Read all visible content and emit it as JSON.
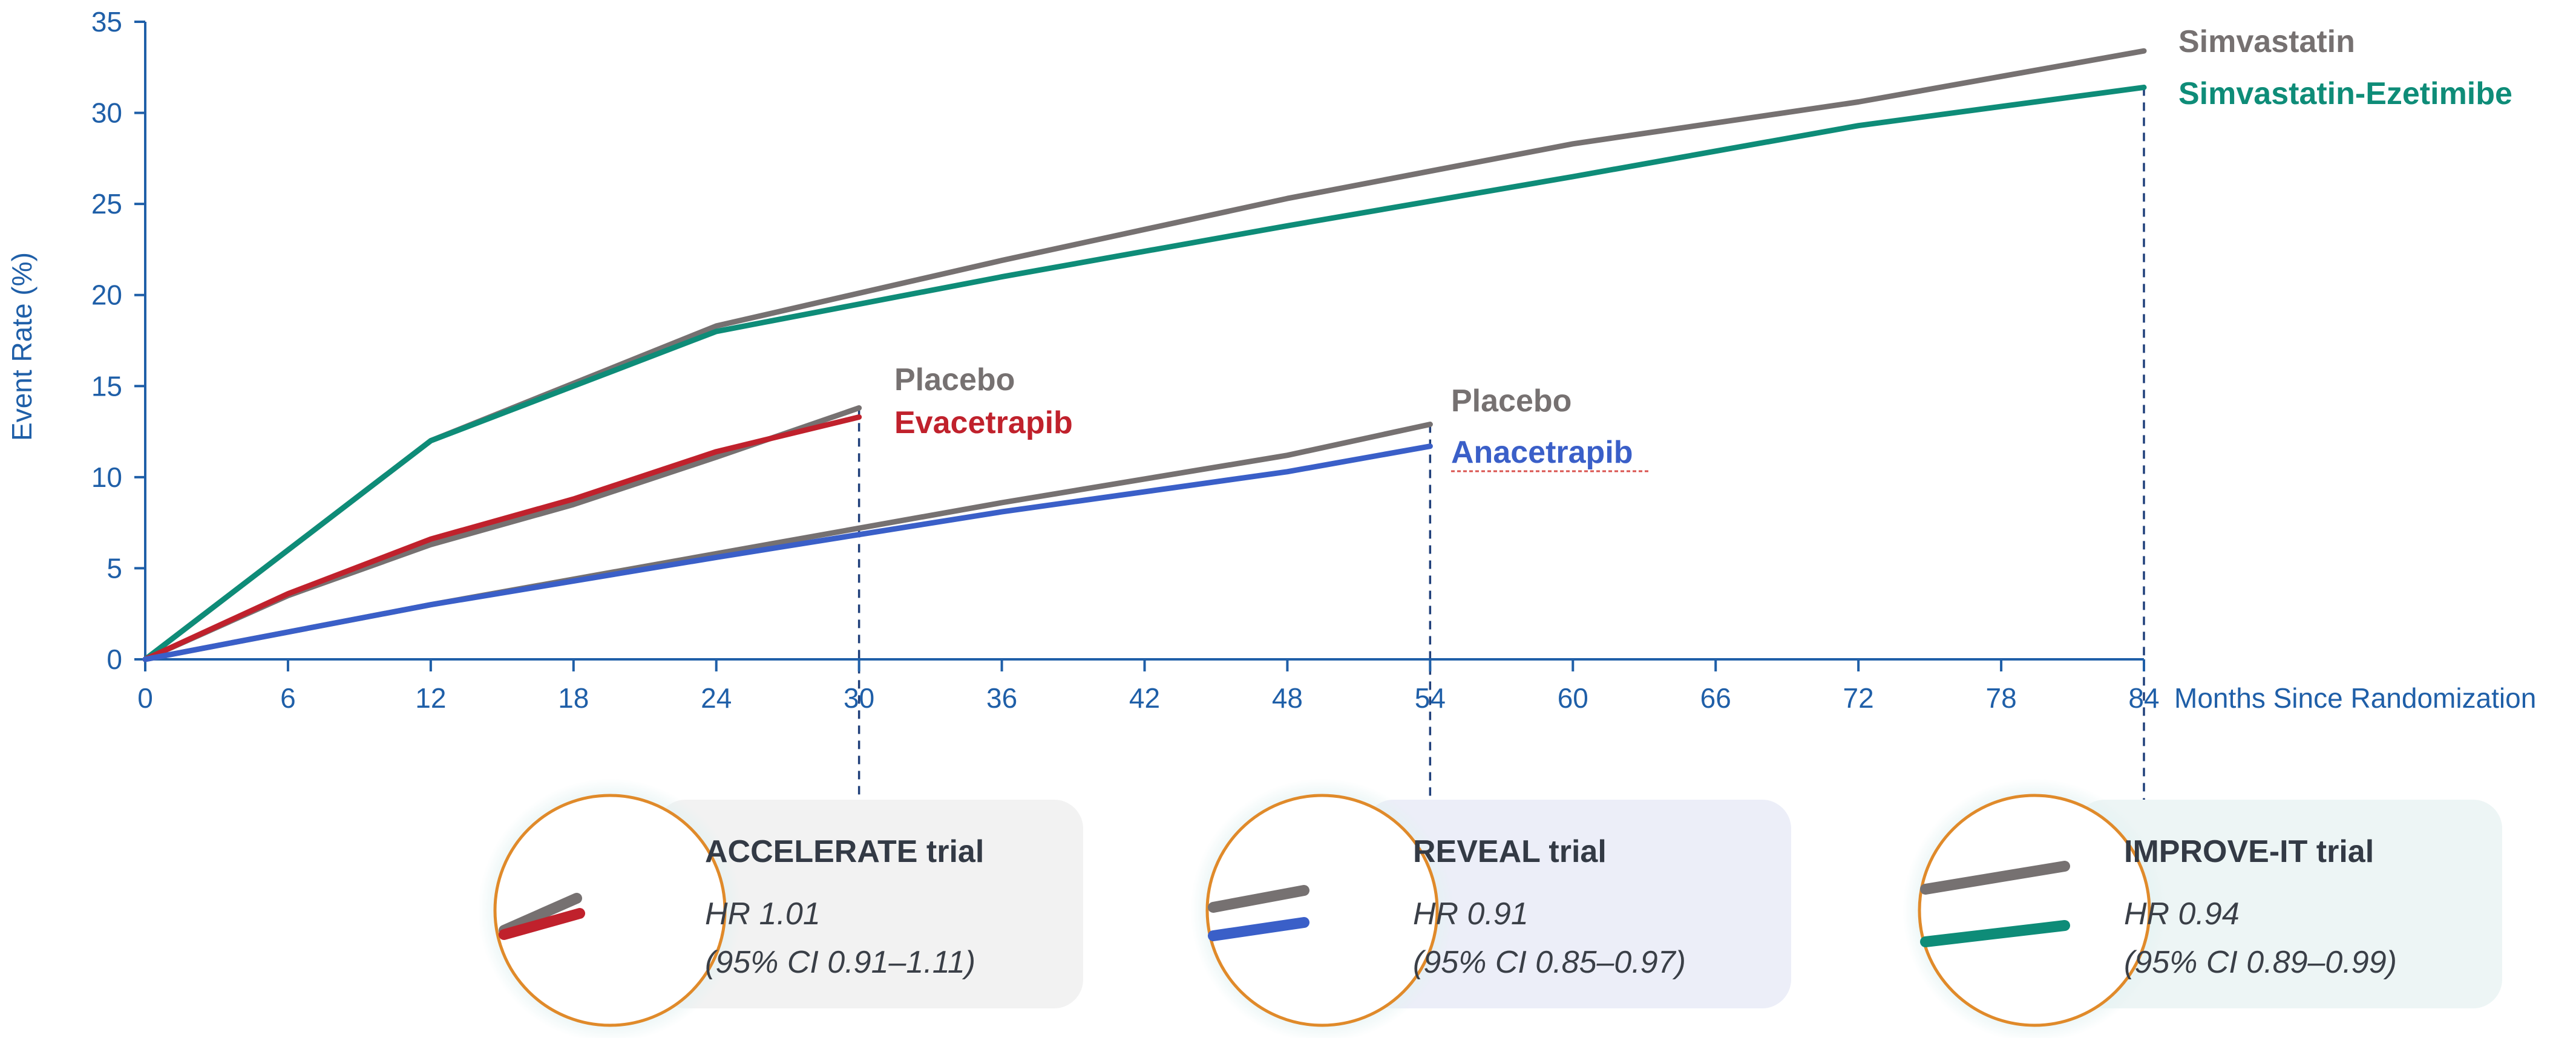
{
  "chart_data": {
    "type": "line",
    "xlabel": "Months Since Randomization",
    "ylabel": "Event Rate (%)",
    "xlim": [
      0,
      84
    ],
    "ylim": [
      0,
      35
    ],
    "xticks": [
      0,
      6,
      12,
      18,
      24,
      30,
      36,
      42,
      48,
      54,
      60,
      66,
      72,
      78,
      84
    ],
    "yticks": [
      0,
      5,
      10,
      15,
      20,
      25,
      30,
      35
    ],
    "grid": false,
    "series": [
      {
        "name": "Simvastatin",
        "color": "#767171",
        "x": [
          0,
          12,
          24,
          36,
          48,
          60,
          72,
          84
        ],
        "y": [
          0,
          12.0,
          18.3,
          21.9,
          25.3,
          28.3,
          30.6,
          33.4
        ]
      },
      {
        "name": "Simvastatin-Ezetimibe",
        "color": "#0e8c78",
        "x": [
          0,
          12,
          24,
          36,
          48,
          60,
          72,
          84
        ],
        "y": [
          0,
          12.0,
          18.0,
          21.0,
          23.8,
          26.5,
          29.3,
          31.4
        ]
      },
      {
        "name": "Placebo",
        "color": "#767171",
        "x": [
          0,
          6,
          12,
          18,
          24,
          30
        ],
        "y": [
          0,
          3.5,
          6.3,
          8.5,
          11.1,
          13.8
        ]
      },
      {
        "name": "Evacetrapib",
        "color": "#c0212c",
        "x": [
          0,
          6,
          12,
          18,
          24,
          30
        ],
        "y": [
          0,
          3.6,
          6.6,
          8.8,
          11.4,
          13.3
        ]
      },
      {
        "name": "Placebo",
        "color": "#767171",
        "x": [
          0,
          12,
          24,
          36,
          48,
          54
        ],
        "y": [
          0,
          3.0,
          5.8,
          8.6,
          11.2,
          12.9
        ]
      },
      {
        "name": "Anacetrapib",
        "color": "#3a5fc8",
        "x": [
          0,
          12,
          24,
          36,
          48,
          54
        ],
        "y": [
          0,
          3.0,
          5.6,
          8.1,
          10.3,
          11.7
        ]
      }
    ],
    "guide_lines_x": [
      30,
      54,
      84
    ],
    "trials": [
      {
        "title": "ACCELERATE trial",
        "hr": "HR 1.01",
        "ci": "(95% CI 0.91–1.11)",
        "card_color": "#f2f2f2",
        "line_colors": [
          "#767171",
          "#c0212c"
        ]
      },
      {
        "title": "REVEAL trial",
        "hr": "HR 0.91",
        "ci": "(95% CI 0.85–0.97)",
        "card_color": "#eceef8",
        "line_colors": [
          "#767171",
          "#3a5fc8"
        ]
      },
      {
        "title": "IMPROVE-IT trial",
        "hr": "HR 0.94",
        "ci": "(95% CI 0.89–0.99)",
        "card_color": "#edf5f5",
        "line_colors": [
          "#767171",
          "#0e8c78"
        ]
      }
    ]
  }
}
